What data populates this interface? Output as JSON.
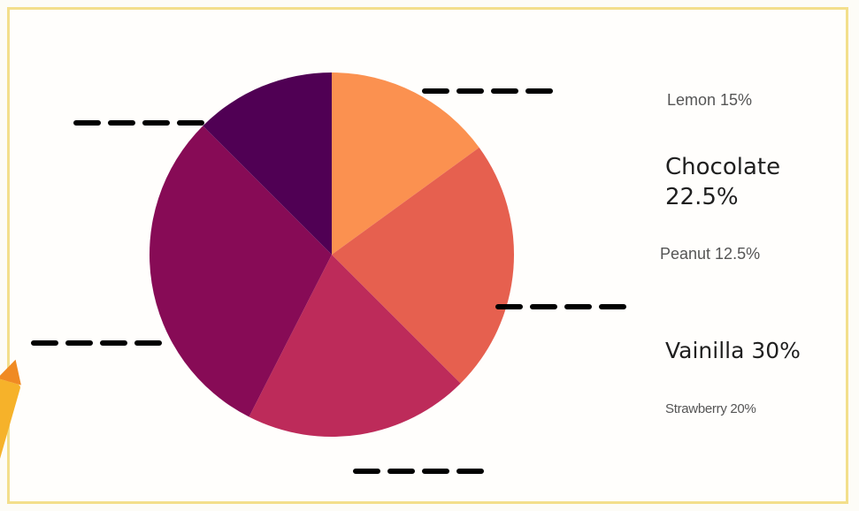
{
  "chart_data": {
    "type": "pie",
    "slices": [
      {
        "label": "Lemon 15%",
        "name": "Lemon",
        "value": 15,
        "color": "#fb9150"
      },
      {
        "label": "Chocolate 22.5%",
        "name": "Chocolate",
        "value": 22.5,
        "color": "#e6604f"
      },
      {
        "label": "Strawberry 20%",
        "name": "Strawberry",
        "value": 20,
        "color": "#bd2b5a"
      },
      {
        "label": "Vainilla 30%",
        "name": "Vainilla",
        "value": 30,
        "color": "#870b56"
      },
      {
        "label": "Peanut 12.5%",
        "name": "Peanut",
        "value": 12.5,
        "color": "#500054"
      }
    ],
    "legend": {
      "lemon": "Lemon 15%",
      "chocolate": "Chocolate 22.5%",
      "peanut": "Peanut 12.5%",
      "vanilla": "Vainilla 30%",
      "strawberry": "Strawberry 20%"
    }
  },
  "colors": {
    "frame_border": "#f3df8c",
    "blank_lines": "#000000",
    "crayon": "#f6b22a"
  },
  "decorations": {
    "crayon_icon": "crayon-icon",
    "blank_line_count": 5
  }
}
